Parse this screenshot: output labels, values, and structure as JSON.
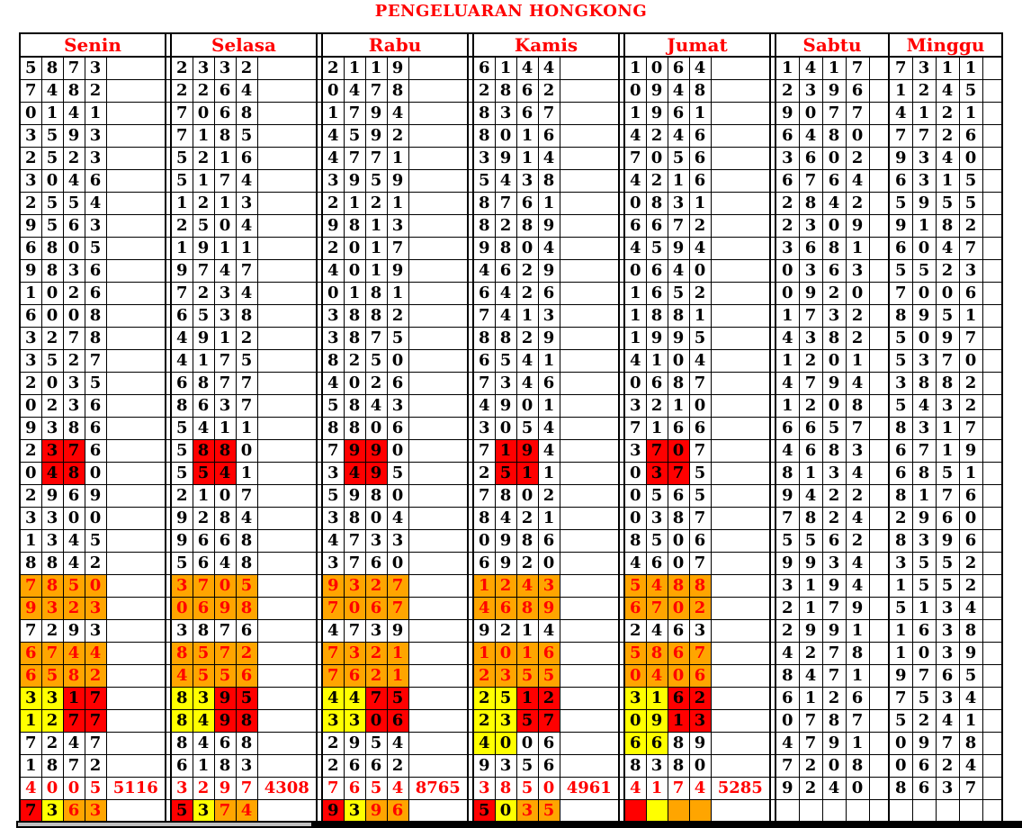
{
  "title": "PENGELUARAN HONGKONG",
  "colors": {
    "accent_red": "#ff0000",
    "highlight_red": "#ff0000",
    "highlight_orange": "#ffa500",
    "highlight_yellow": "#ffff00",
    "grid_black": "#000000",
    "footer_gray": "#c0c0c0"
  },
  "style_codes_legend": {
    "mr": "middle two digits red background",
    "o": "all digits orange background with red text",
    "yr": "first two digits yellow, last two red background",
    "y2": "first two digits yellow background",
    "rt": "red text row with red summary number",
    "sw": "cells colored red/yellow/orange/orange",
    "swe": "empty cells colored red/yellow/orange/orange"
  },
  "days": [
    {
      "name": "Senin",
      "rows": [
        [
          "5873"
        ],
        [
          "7482"
        ],
        [
          "0141"
        ],
        [
          "3593"
        ],
        [
          "2523"
        ],
        [
          "3046"
        ],
        [
          "2554"
        ],
        [
          "9563"
        ],
        [
          "6805"
        ],
        [
          "9836"
        ],
        [
          "1026"
        ],
        [
          "6008"
        ],
        [
          "3278"
        ],
        [
          "3527"
        ],
        [
          "2035"
        ],
        [
          "0236"
        ],
        [
          "9386"
        ],
        [
          "2376",
          "mr"
        ],
        [
          "0480",
          "mr"
        ],
        [
          "2969"
        ],
        [
          "3300"
        ],
        [
          "1345"
        ],
        [
          "8842"
        ],
        [
          "7850",
          "o"
        ],
        [
          "9323",
          "o"
        ],
        [
          "7293"
        ],
        [
          "6744",
          "o"
        ],
        [
          "6582",
          "o"
        ],
        [
          "3317",
          "yr"
        ],
        [
          "1277",
          "yr"
        ],
        [
          "7247"
        ],
        [
          "1872"
        ],
        [
          "4005",
          "rt",
          "5116"
        ],
        [
          "7363",
          "sw"
        ]
      ]
    },
    {
      "name": "Selasa",
      "rows": [
        [
          "2332"
        ],
        [
          "2264"
        ],
        [
          "7068"
        ],
        [
          "7185"
        ],
        [
          "5216"
        ],
        [
          "5174"
        ],
        [
          "1213"
        ],
        [
          "2504"
        ],
        [
          "1911"
        ],
        [
          "9747"
        ],
        [
          "7234"
        ],
        [
          "6538"
        ],
        [
          "4912"
        ],
        [
          "4175"
        ],
        [
          "6877"
        ],
        [
          "8637"
        ],
        [
          "5411"
        ],
        [
          "5880",
          "mr"
        ],
        [
          "5541",
          "mr"
        ],
        [
          "2107"
        ],
        [
          "9284"
        ],
        [
          "9668"
        ],
        [
          "5648"
        ],
        [
          "3705",
          "o"
        ],
        [
          "0698",
          "o"
        ],
        [
          "3876"
        ],
        [
          "8572",
          "o"
        ],
        [
          "4556",
          "o"
        ],
        [
          "8395",
          "yr"
        ],
        [
          "8498",
          "yr"
        ],
        [
          "8468"
        ],
        [
          "6183"
        ],
        [
          "3297",
          "rt",
          "4308"
        ],
        [
          "5374",
          "sw"
        ]
      ]
    },
    {
      "name": "Rabu",
      "rows": [
        [
          "2119"
        ],
        [
          "0478"
        ],
        [
          "1794"
        ],
        [
          "4592"
        ],
        [
          "4771"
        ],
        [
          "3959"
        ],
        [
          "2121"
        ],
        [
          "9813"
        ],
        [
          "2017"
        ],
        [
          "4019"
        ],
        [
          "0181"
        ],
        [
          "3882"
        ],
        [
          "3875"
        ],
        [
          "8250"
        ],
        [
          "4026"
        ],
        [
          "5843"
        ],
        [
          "8806"
        ],
        [
          "7990",
          "mr"
        ],
        [
          "3495",
          "mr"
        ],
        [
          "5980"
        ],
        [
          "3804"
        ],
        [
          "4733"
        ],
        [
          "3760"
        ],
        [
          "9327",
          "o"
        ],
        [
          "7067",
          "o"
        ],
        [
          "4739"
        ],
        [
          "7321",
          "o"
        ],
        [
          "7621",
          "o"
        ],
        [
          "4475",
          "yr"
        ],
        [
          "3306",
          "yr"
        ],
        [
          "2954"
        ],
        [
          "2662"
        ],
        [
          "7654",
          "rt",
          "8765"
        ],
        [
          "9396",
          "sw"
        ]
      ]
    },
    {
      "name": "Kamis",
      "rows": [
        [
          "6144"
        ],
        [
          "2862"
        ],
        [
          "8367"
        ],
        [
          "8016"
        ],
        [
          "3914"
        ],
        [
          "5438"
        ],
        [
          "8761"
        ],
        [
          "8289"
        ],
        [
          "9804"
        ],
        [
          "4629"
        ],
        [
          "6426"
        ],
        [
          "7413"
        ],
        [
          "8829"
        ],
        [
          "6541"
        ],
        [
          "7346"
        ],
        [
          "4901"
        ],
        [
          "3054"
        ],
        [
          "7194",
          "mr"
        ],
        [
          "2511",
          "mr"
        ],
        [
          "7802"
        ],
        [
          "8421"
        ],
        [
          "0986"
        ],
        [
          "6920"
        ],
        [
          "1243",
          "o"
        ],
        [
          "4689",
          "o"
        ],
        [
          "9214"
        ],
        [
          "1016",
          "o"
        ],
        [
          "2355",
          "o"
        ],
        [
          "2512",
          "yr"
        ],
        [
          "2357",
          "yr"
        ],
        [
          "4006",
          "y2"
        ],
        [
          "9356"
        ],
        [
          "3850",
          "rt",
          "4961"
        ],
        [
          "5035",
          "sw"
        ]
      ]
    },
    {
      "name": "Jumat",
      "rows": [
        [
          "1064"
        ],
        [
          "0948"
        ],
        [
          "1961"
        ],
        [
          "4246"
        ],
        [
          "7056"
        ],
        [
          "4216"
        ],
        [
          "0831"
        ],
        [
          "6672"
        ],
        [
          "4594"
        ],
        [
          "0640"
        ],
        [
          "1652"
        ],
        [
          "1881"
        ],
        [
          "1995"
        ],
        [
          "4104"
        ],
        [
          "0687"
        ],
        [
          "3210"
        ],
        [
          "7166"
        ],
        [
          "3707",
          "mr"
        ],
        [
          "0375",
          "mr"
        ],
        [
          "0565"
        ],
        [
          "0387"
        ],
        [
          "8506"
        ],
        [
          "4607"
        ],
        [
          "5488",
          "o"
        ],
        [
          "6702",
          "o"
        ],
        [
          "2463"
        ],
        [
          "5867",
          "o"
        ],
        [
          "0406",
          "o"
        ],
        [
          "3162",
          "yr"
        ],
        [
          "0913",
          "yr"
        ],
        [
          "6689",
          "y2"
        ],
        [
          "8380"
        ],
        [
          "4174",
          "rt",
          "5285"
        ],
        [
          "",
          "swe"
        ]
      ]
    },
    {
      "name": "Sabtu",
      "rows": [
        [
          "1417"
        ],
        [
          "2396"
        ],
        [
          "9077"
        ],
        [
          "6480"
        ],
        [
          "3602"
        ],
        [
          "6764"
        ],
        [
          "2842"
        ],
        [
          "2309"
        ],
        [
          "3681"
        ],
        [
          "0363"
        ],
        [
          "0920"
        ],
        [
          "1732"
        ],
        [
          "4382"
        ],
        [
          "1201"
        ],
        [
          "4794"
        ],
        [
          "1208"
        ],
        [
          "6657"
        ],
        [
          "4683"
        ],
        [
          "8134"
        ],
        [
          "9422"
        ],
        [
          "7824"
        ],
        [
          "5562"
        ],
        [
          "9934"
        ],
        [
          "3194"
        ],
        [
          "2179"
        ],
        [
          "2991"
        ],
        [
          "4278"
        ],
        [
          "8471"
        ],
        [
          "6126"
        ],
        [
          "0787"
        ],
        [
          "4791"
        ],
        [
          "7208"
        ],
        [
          "9240"
        ],
        [
          ""
        ]
      ]
    },
    {
      "name": "Minggu",
      "rows": [
        [
          "7311"
        ],
        [
          "1245"
        ],
        [
          "4121"
        ],
        [
          "7726"
        ],
        [
          "9340"
        ],
        [
          "6315"
        ],
        [
          "5955"
        ],
        [
          "9182"
        ],
        [
          "6047"
        ],
        [
          "5523"
        ],
        [
          "7006"
        ],
        [
          "8951"
        ],
        [
          "5097"
        ],
        [
          "5370"
        ],
        [
          "3882"
        ],
        [
          "5432"
        ],
        [
          "8317"
        ],
        [
          "6719"
        ],
        [
          "6851"
        ],
        [
          "8176"
        ],
        [
          "2960"
        ],
        [
          "8396"
        ],
        [
          "3552"
        ],
        [
          "1552"
        ],
        [
          "5134"
        ],
        [
          "1638"
        ],
        [
          "1039"
        ],
        [
          "9765"
        ],
        [
          "7534"
        ],
        [
          "5241"
        ],
        [
          "0978"
        ],
        [
          "0624"
        ],
        [
          "8637"
        ],
        [
          ""
        ]
      ]
    }
  ]
}
